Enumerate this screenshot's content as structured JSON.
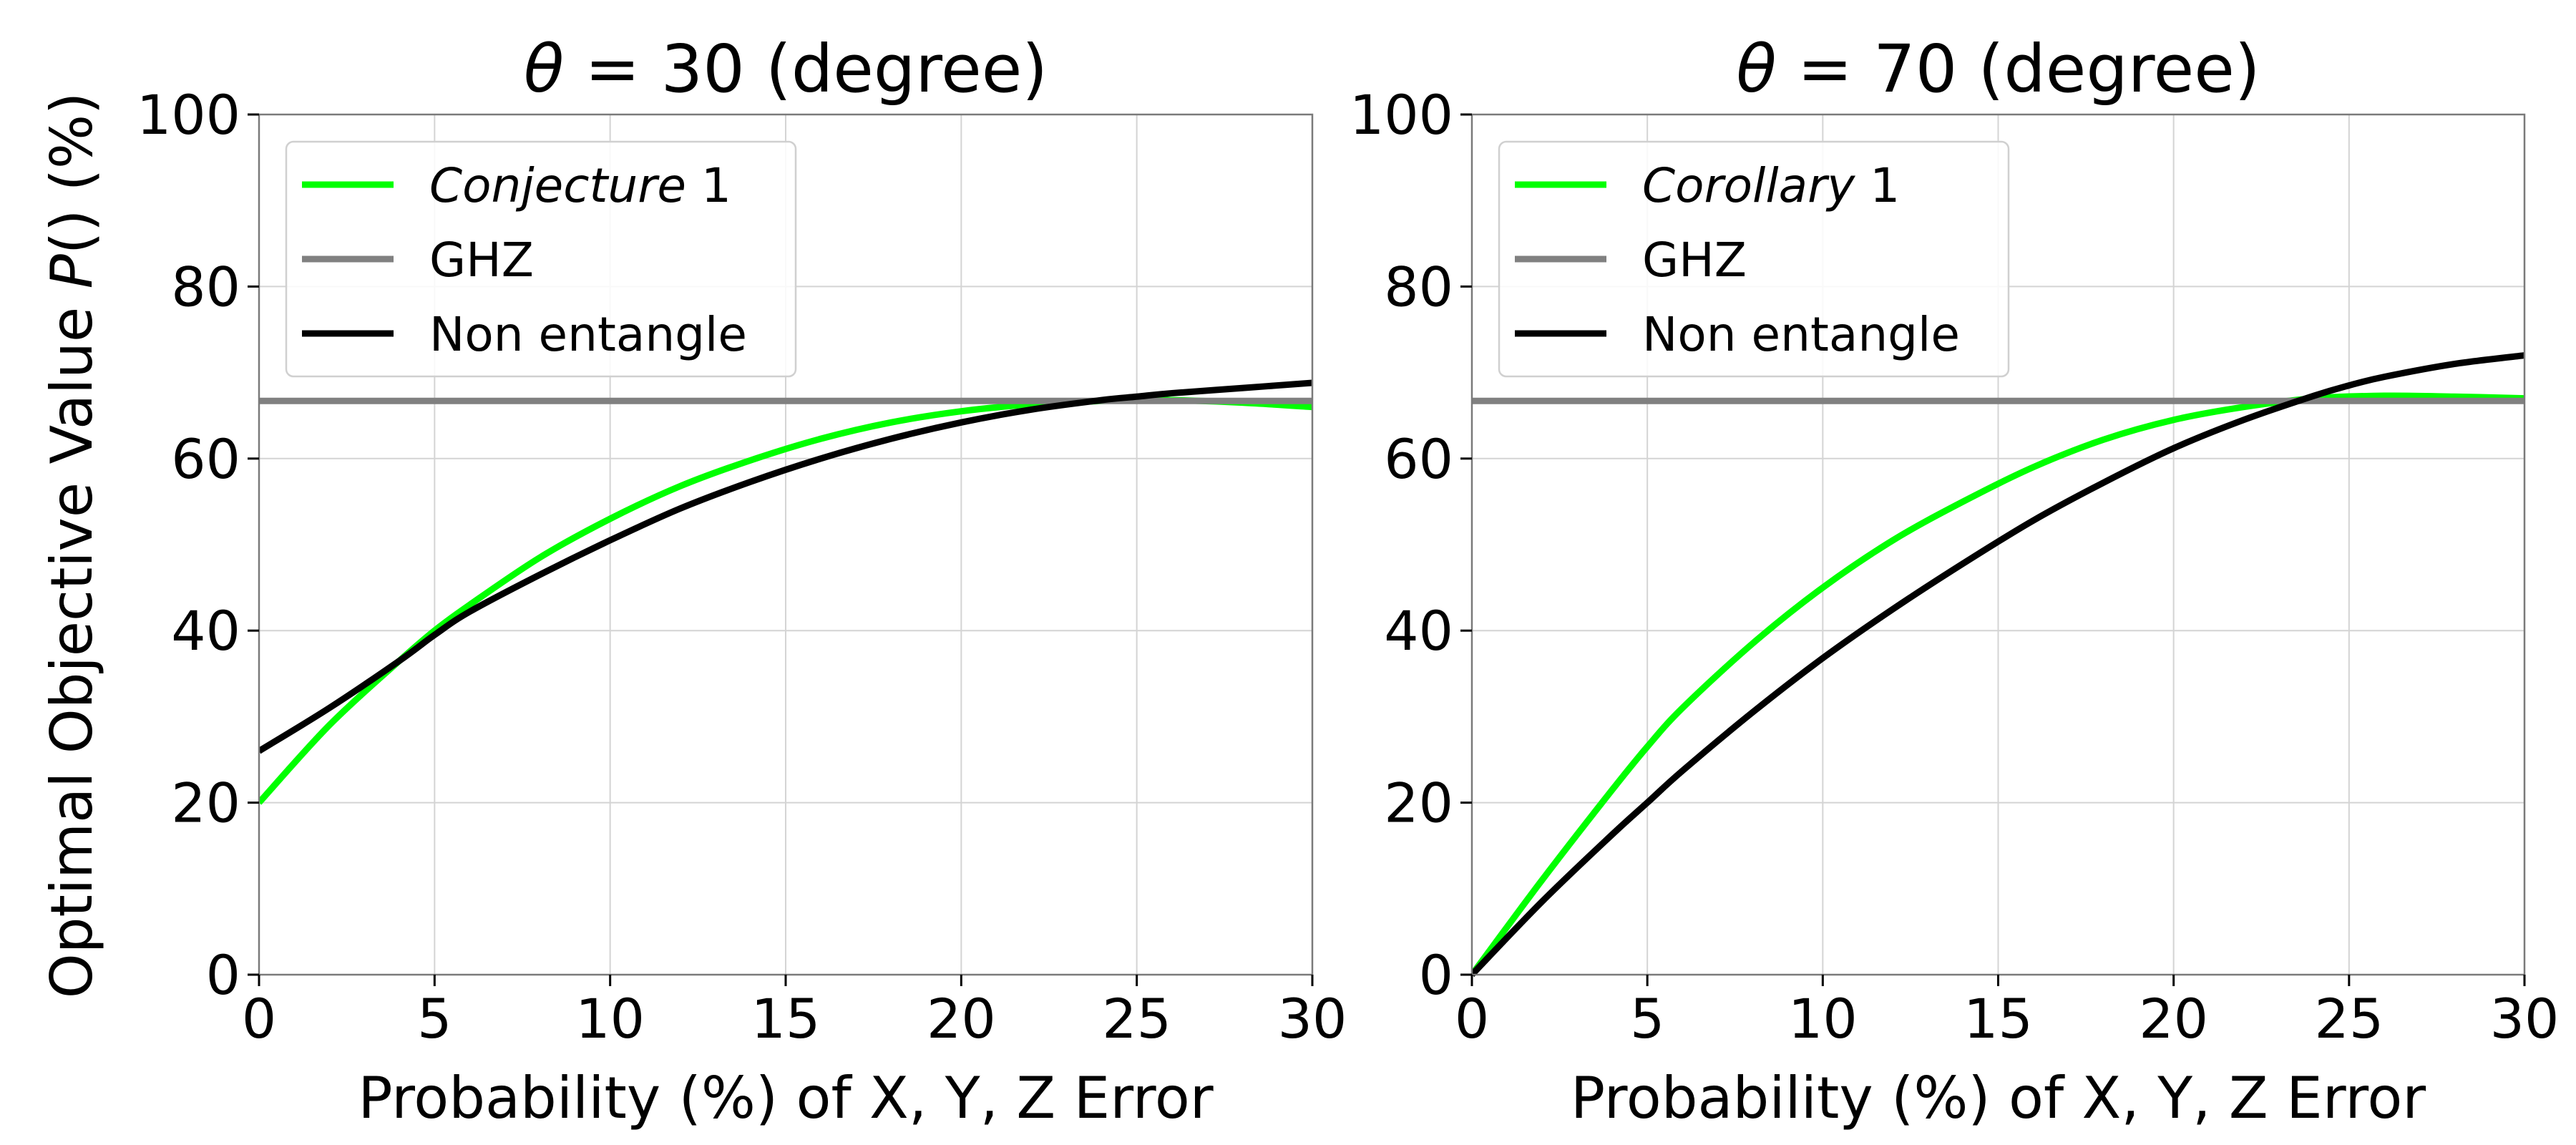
{
  "figure": {
    "ylabel_prefix": "Optimal Objective Value ",
    "ylabel_var": "P",
    "ylabel_suffix": "() (%)"
  },
  "chart_data": [
    {
      "type": "line",
      "title_prefix": "θ",
      "title_suffix": " = 30 (degree)",
      "xlabel": "Probability (%) of X, Y, Z Error",
      "xlim": [
        0,
        30
      ],
      "ylim": [
        0,
        100
      ],
      "xticks": [
        "0",
        "5",
        "10",
        "15",
        "20",
        "25",
        "30"
      ],
      "yticks": [
        "0",
        "20",
        "40",
        "60",
        "80",
        "100"
      ],
      "grid": true,
      "legend_position": "upper-left",
      "series": [
        {
          "name": "Conjecture 1",
          "name_italic": "Conjecture",
          "name_plain": " 1",
          "color": "#00ff00",
          "x": [
            0,
            2,
            4,
            5,
            6,
            8,
            10,
            12,
            14,
            16,
            18,
            20,
            22,
            24,
            25,
            26,
            28,
            30
          ],
          "y": [
            20,
            29,
            36.5,
            40,
            43,
            48.5,
            53,
            56.8,
            59.8,
            62.3,
            64.2,
            65.5,
            66.3,
            66.7,
            66.8,
            66.8,
            66.5,
            66
          ]
        },
        {
          "name": "GHZ",
          "color": "#808080",
          "x": [
            0,
            30
          ],
          "y": [
            66.7,
            66.7
          ]
        },
        {
          "name": "Non entangle",
          "color": "#000000",
          "x": [
            0,
            2,
            4,
            5,
            6,
            8,
            10,
            12,
            14,
            16,
            18,
            20,
            22,
            24,
            25,
            26,
            28,
            30
          ],
          "y": [
            26,
            31,
            36.5,
            39.5,
            42.2,
            46.5,
            50.5,
            54.2,
            57.3,
            60,
            62.3,
            64.2,
            65.7,
            66.8,
            67.2,
            67.6,
            68.2,
            68.8
          ]
        }
      ]
    },
    {
      "type": "line",
      "title_prefix": "θ",
      "title_suffix": " = 70 (degree)",
      "xlabel": "Probability (%) of X, Y, Z Error",
      "xlim": [
        0,
        30
      ],
      "ylim": [
        0,
        100
      ],
      "xticks": [
        "0",
        "5",
        "10",
        "15",
        "20",
        "25",
        "30"
      ],
      "yticks": [
        "0",
        "20",
        "40",
        "60",
        "80",
        "100"
      ],
      "grid": true,
      "legend_position": "upper-left",
      "series": [
        {
          "name": "Corollary 1",
          "name_italic": "Corollary",
          "name_plain": " 1",
          "color": "#00ff00",
          "x": [
            0,
            2,
            4,
            5,
            6,
            8,
            10,
            12,
            14,
            16,
            18,
            20,
            22,
            24,
            26,
            28,
            30
          ],
          "y": [
            0,
            11,
            21.5,
            26.5,
            31,
            38.5,
            45,
            50.5,
            55,
            59,
            62.2,
            64.5,
            66,
            67,
            67.3,
            67.2,
            67
          ]
        },
        {
          "name": "GHZ",
          "color": "#808080",
          "x": [
            0,
            30
          ],
          "y": [
            66.7,
            66.7
          ]
        },
        {
          "name": "Non entangle",
          "color": "#000000",
          "x": [
            0,
            2,
            4,
            5,
            6,
            8,
            10,
            12,
            14,
            16,
            18,
            20,
            22,
            24,
            25,
            26,
            28,
            30
          ],
          "y": [
            0,
            8.5,
            16.3,
            20,
            23.7,
            30.5,
            36.8,
            42.5,
            47.8,
            52.8,
            57.2,
            61.2,
            64.5,
            67.3,
            68.5,
            69.5,
            71,
            72
          ]
        }
      ]
    }
  ]
}
